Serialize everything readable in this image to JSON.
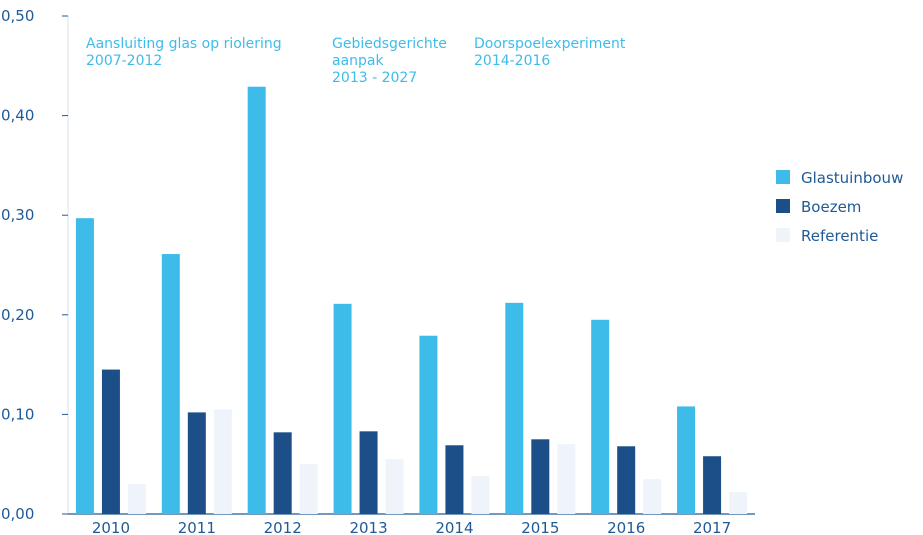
{
  "chart_data": {
    "type": "bar",
    "title": "",
    "xlabel": "",
    "ylabel": "",
    "ylim": [
      0,
      0.5
    ],
    "yticks": [
      0,
      0.1,
      0.2,
      0.3,
      0.4,
      0.5
    ],
    "ytick_labels": [
      "0,00",
      "0,10",
      "0,20",
      "0,30",
      "0,40",
      "0,50"
    ],
    "grid": false,
    "legend_position": "right",
    "categories": [
      "2010",
      "2011",
      "2012",
      "2013",
      "2014",
      "2015",
      "2016",
      "2017"
    ],
    "series": [
      {
        "name": "Glastuinbouw",
        "color": "#3dbcea",
        "values": [
          0.297,
          0.261,
          0.429,
          0.211,
          0.179,
          0.212,
          0.195,
          0.108
        ]
      },
      {
        "name": "Boezem",
        "color": "#1c4f87",
        "values": [
          0.145,
          0.102,
          0.082,
          0.083,
          0.069,
          0.075,
          0.068,
          0.058
        ]
      },
      {
        "name": "Referentie",
        "color": "#eef4f9",
        "values": [
          0.03,
          0.105,
          0.05,
          0.055,
          0.038,
          0.07,
          0.035,
          0.022
        ]
      }
    ],
    "annotations": [
      {
        "lines": [
          "Aansluiting glas op riolering",
          "2007-2012"
        ]
      },
      {
        "lines": [
          "Gebiedsgerichte",
          "aanpak",
          "2013 - 2027"
        ]
      },
      {
        "lines": [
          "Doorspoelexperiment",
          "2014-2016"
        ]
      }
    ]
  }
}
